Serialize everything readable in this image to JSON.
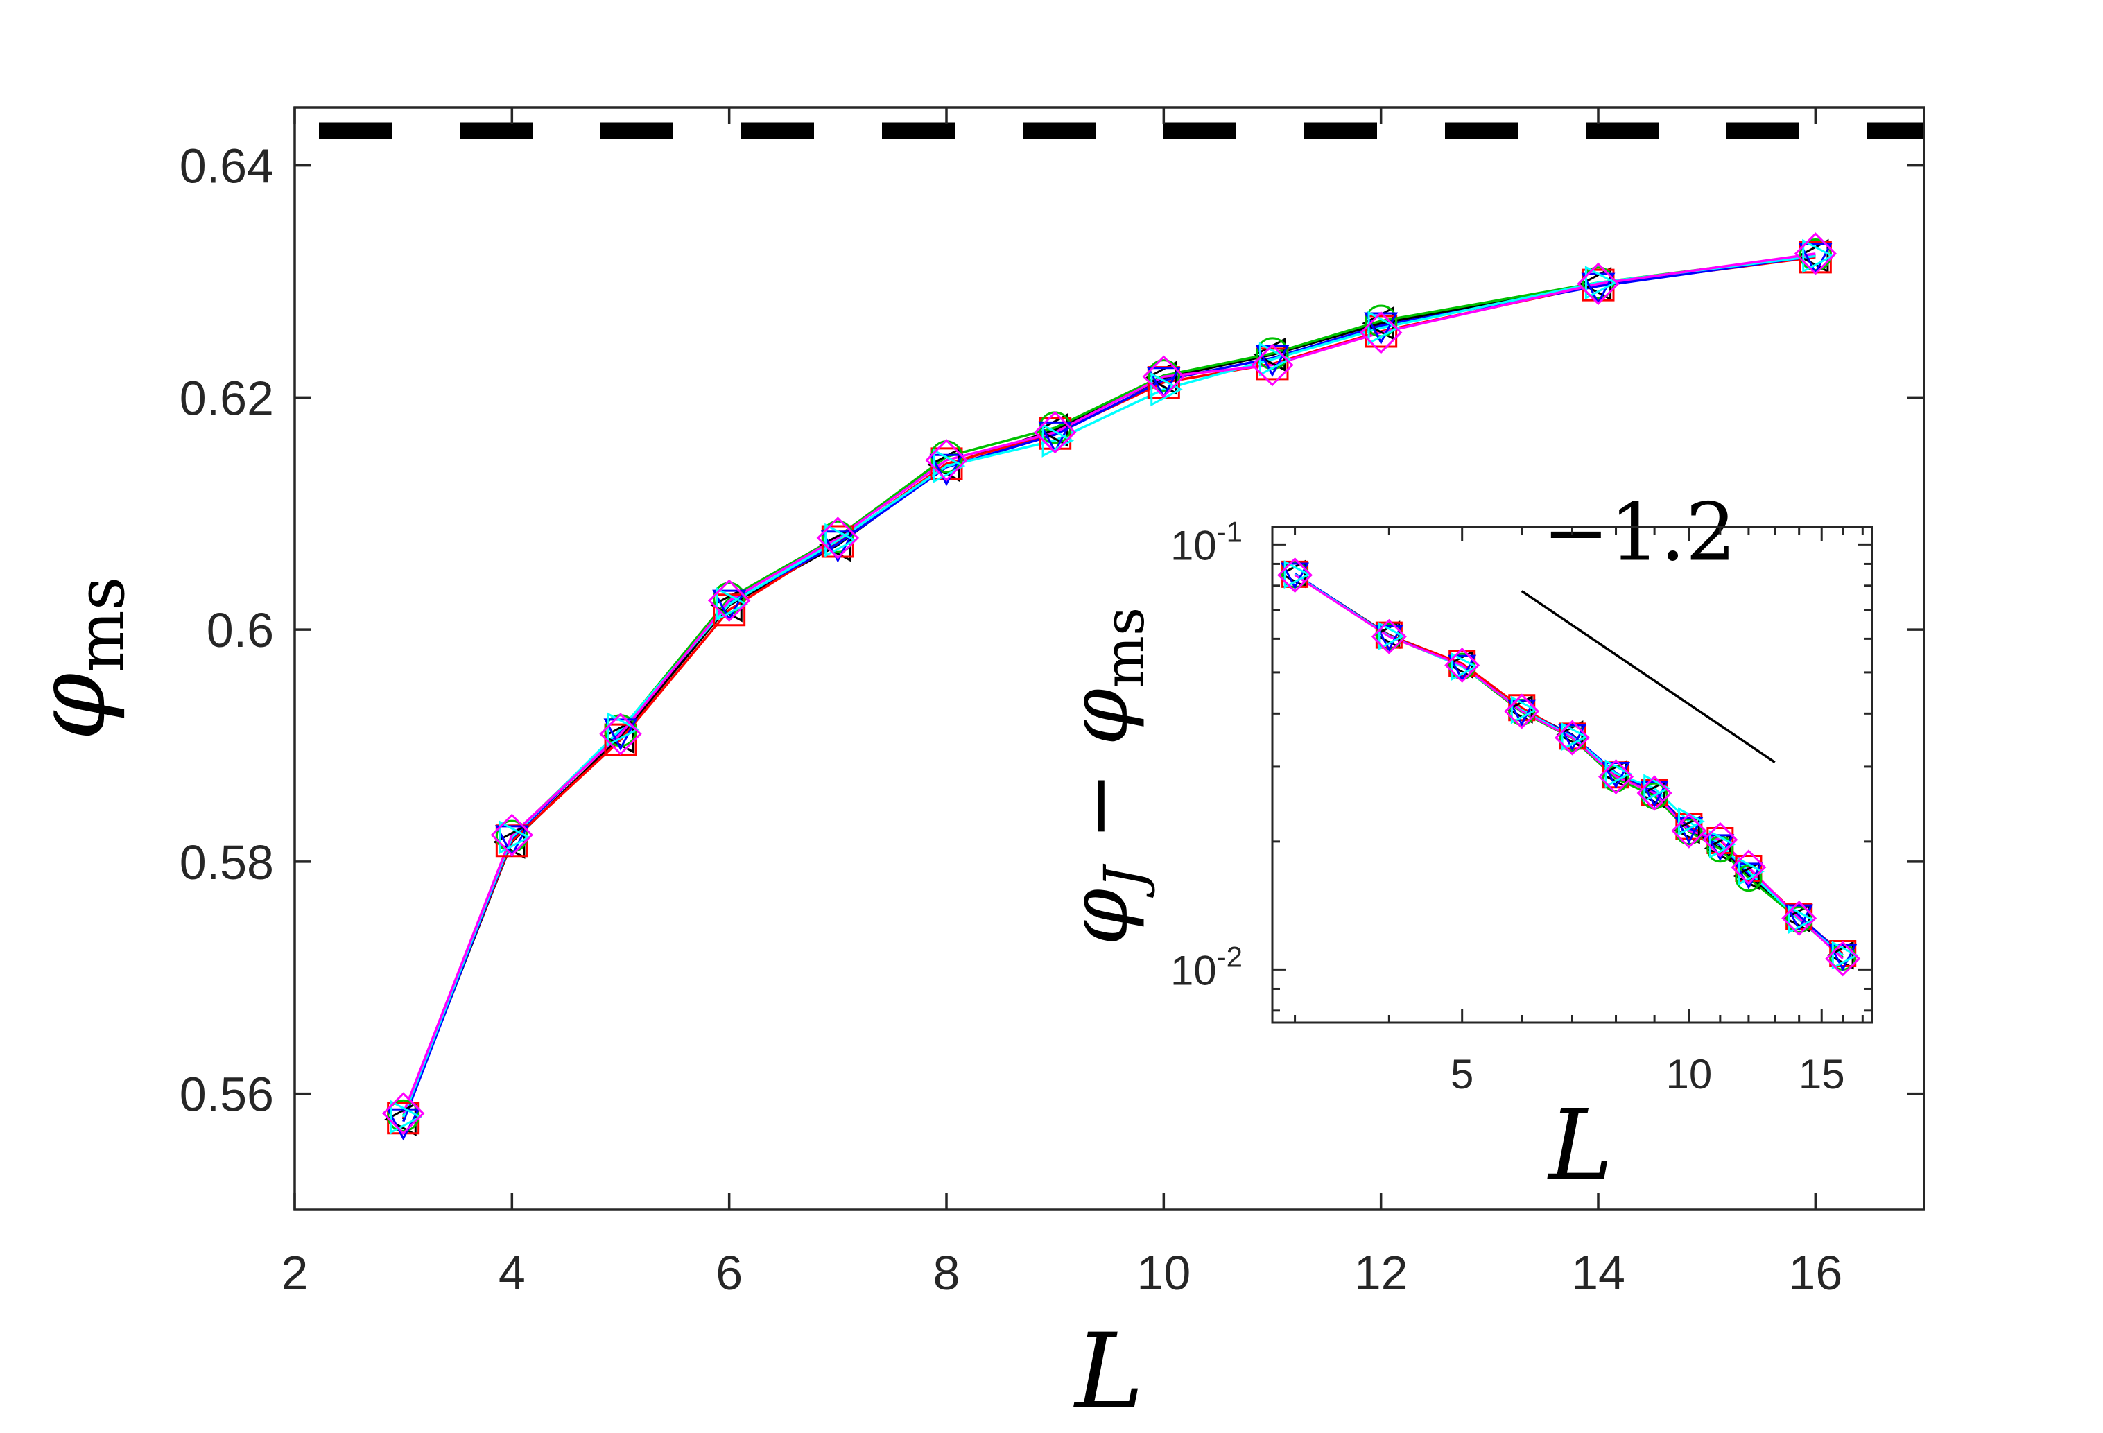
{
  "chart_data": [
    {
      "type": "line",
      "xlabel": "L",
      "ylabel": "φms",
      "ylabel_main": "φ",
      "ylabel_sub": "ms",
      "xlim": [
        2,
        17
      ],
      "ylim": [
        0.55,
        0.645
      ],
      "xticks": [
        2,
        4,
        6,
        8,
        10,
        12,
        14,
        16
      ],
      "xtick_labels": [
        "2",
        "4",
        "6",
        "8",
        "10",
        "12",
        "14",
        "16"
      ],
      "yticks": [
        0.56,
        0.58,
        0.6,
        0.62,
        0.64
      ],
      "ytick_labels": [
        "0.56",
        "0.58",
        "0.6",
        "0.62",
        "0.64"
      ],
      "reference_line": {
        "y": 0.643,
        "style": "dashed",
        "color": "#000000"
      },
      "x": [
        3,
        4,
        5,
        6,
        7,
        8,
        9,
        10,
        11,
        12,
        14,
        16
      ],
      "series": [
        {
          "color": "#000000",
          "marker": "triangle-left",
          "values": [
            0.5578,
            0.5817,
            0.5908,
            0.6021,
            0.6073,
            0.6142,
            0.6172,
            0.6217,
            0.6237,
            0.6264,
            0.6298,
            0.6322
          ]
        },
        {
          "color": "#ff0000",
          "marker": "square",
          "values": [
            0.5579,
            0.5818,
            0.5905,
            0.6017,
            0.6076,
            0.6143,
            0.6169,
            0.6213,
            0.6229,
            0.6257,
            0.6297,
            0.6321
          ]
        },
        {
          "color": "#00c000",
          "marker": "circle",
          "values": [
            0.5581,
            0.5822,
            0.5913,
            0.6027,
            0.608,
            0.6149,
            0.6174,
            0.6219,
            0.6238,
            0.6266,
            0.6299,
            0.6323
          ]
        },
        {
          "color": "#0000ff",
          "marker": "triangle-down",
          "values": [
            0.5576,
            0.582,
            0.5912,
            0.6023,
            0.6074,
            0.614,
            0.6168,
            0.6215,
            0.6234,
            0.6262,
            0.6296,
            0.6322
          ]
        },
        {
          "color": "#00ffff",
          "marker": "triangle-right",
          "values": [
            0.558,
            0.5821,
            0.5914,
            0.6022,
            0.6077,
            0.6141,
            0.6163,
            0.6207,
            0.6233,
            0.626,
            0.6299,
            0.6322
          ]
        },
        {
          "color": "#ff00ff",
          "marker": "diamond",
          "values": [
            0.5583,
            0.5823,
            0.591,
            0.6025,
            0.6079,
            0.6146,
            0.617,
            0.6218,
            0.6228,
            0.6256,
            0.6298,
            0.6324
          ]
        }
      ]
    },
    {
      "type": "line",
      "inset": true,
      "xlabel": "L",
      "ylabel": "φJ − φms",
      "ylabel_parts": [
        "φ",
        "J",
        " − ",
        "φ",
        "ms"
      ],
      "xscale": "log",
      "yscale": "log",
      "xlim": [
        2.8,
        17.5
      ],
      "ylim": [
        0.0075,
        0.11
      ],
      "xticks": [
        5,
        10,
        15
      ],
      "xtick_labels": [
        "5",
        "10",
        "15"
      ],
      "yticks": [
        0.01,
        0.1
      ],
      "ytick_labels": [
        "10-2",
        "10-1"
      ],
      "annotation": {
        "text": "−1.2",
        "slope": -1.2,
        "segment_x": [
          6,
          13
        ]
      },
      "x": [
        3,
        4,
        5,
        6,
        7,
        8,
        9,
        10,
        11,
        12,
        14,
        16
      ],
      "series": [
        {
          "color": "#000000",
          "values": [
            0.0852,
            0.0613,
            0.0522,
            0.0409,
            0.0357,
            0.0288,
            0.0258,
            0.0213,
            0.0193,
            0.0166,
            0.0132,
            0.0108
          ]
        },
        {
          "color": "#ff0000",
          "values": [
            0.0851,
            0.0612,
            0.0525,
            0.0413,
            0.0354,
            0.0287,
            0.0261,
            0.0217,
            0.0201,
            0.0173,
            0.0133,
            0.0109
          ]
        },
        {
          "color": "#00c000",
          "values": [
            0.0849,
            0.0608,
            0.0517,
            0.0403,
            0.035,
            0.0281,
            0.0256,
            0.0211,
            0.0192,
            0.0164,
            0.0131,
            0.0107
          ]
        },
        {
          "color": "#0000ff",
          "values": [
            0.0854,
            0.061,
            0.0518,
            0.0407,
            0.0356,
            0.029,
            0.0262,
            0.0215,
            0.0196,
            0.0168,
            0.0134,
            0.0108
          ]
        },
        {
          "color": "#00ffff",
          "values": [
            0.085,
            0.0609,
            0.0516,
            0.0408,
            0.0353,
            0.0289,
            0.0267,
            0.0223,
            0.0197,
            0.017,
            0.0131,
            0.0108
          ]
        },
        {
          "color": "#ff00ff",
          "values": [
            0.0847,
            0.0607,
            0.052,
            0.0405,
            0.0351,
            0.0284,
            0.026,
            0.0212,
            0.0202,
            0.0174,
            0.0132,
            0.0106
          ]
        }
      ]
    }
  ]
}
